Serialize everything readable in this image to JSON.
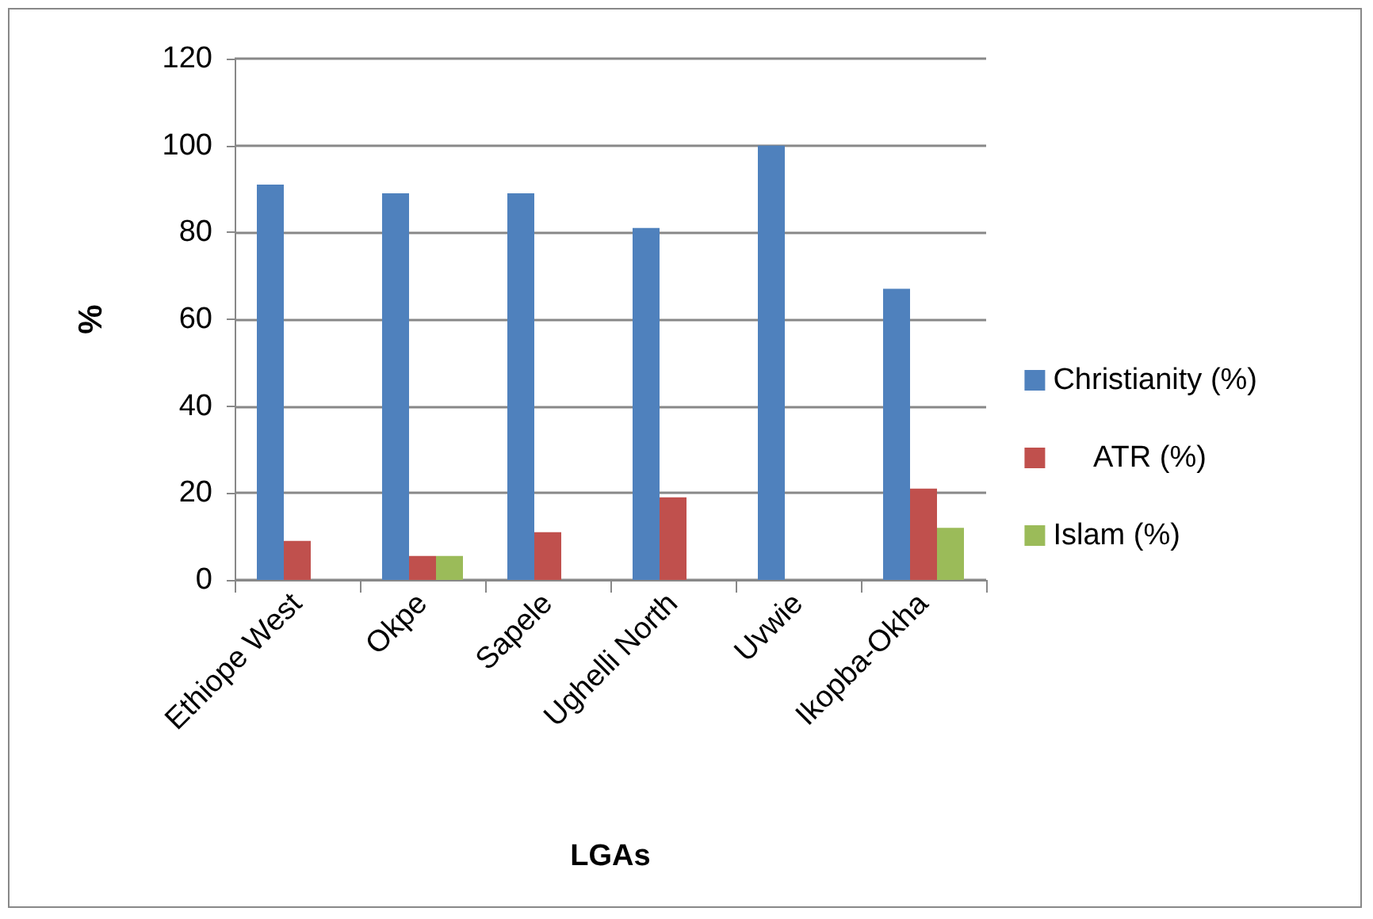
{
  "chart_data": {
    "type": "bar",
    "xlabel": "LGAs",
    "ylabel": "%",
    "categories": [
      "Ethiope West",
      "Okpe",
      "Sapele",
      "Ughelli North",
      "Uvwie",
      "Ikopba-Okha"
    ],
    "series": [
      {
        "name": "Christianity (%)",
        "color": "#4f81bd",
        "values": [
          91,
          89,
          89,
          81,
          100,
          67
        ]
      },
      {
        "name": "     ATR (%)",
        "color": "#c0504d",
        "values": [
          9,
          5.5,
          11,
          19,
          0,
          21
        ]
      },
      {
        "name": "Islam (%)",
        "color": "#9bbb59",
        "values": [
          0,
          5.5,
          0,
          0,
          0,
          12
        ]
      }
    ],
    "ylim": [
      0,
      120
    ],
    "yticks": [
      0,
      20,
      40,
      60,
      80,
      100,
      120
    ],
    "grid": "y",
    "legend": "right"
  }
}
